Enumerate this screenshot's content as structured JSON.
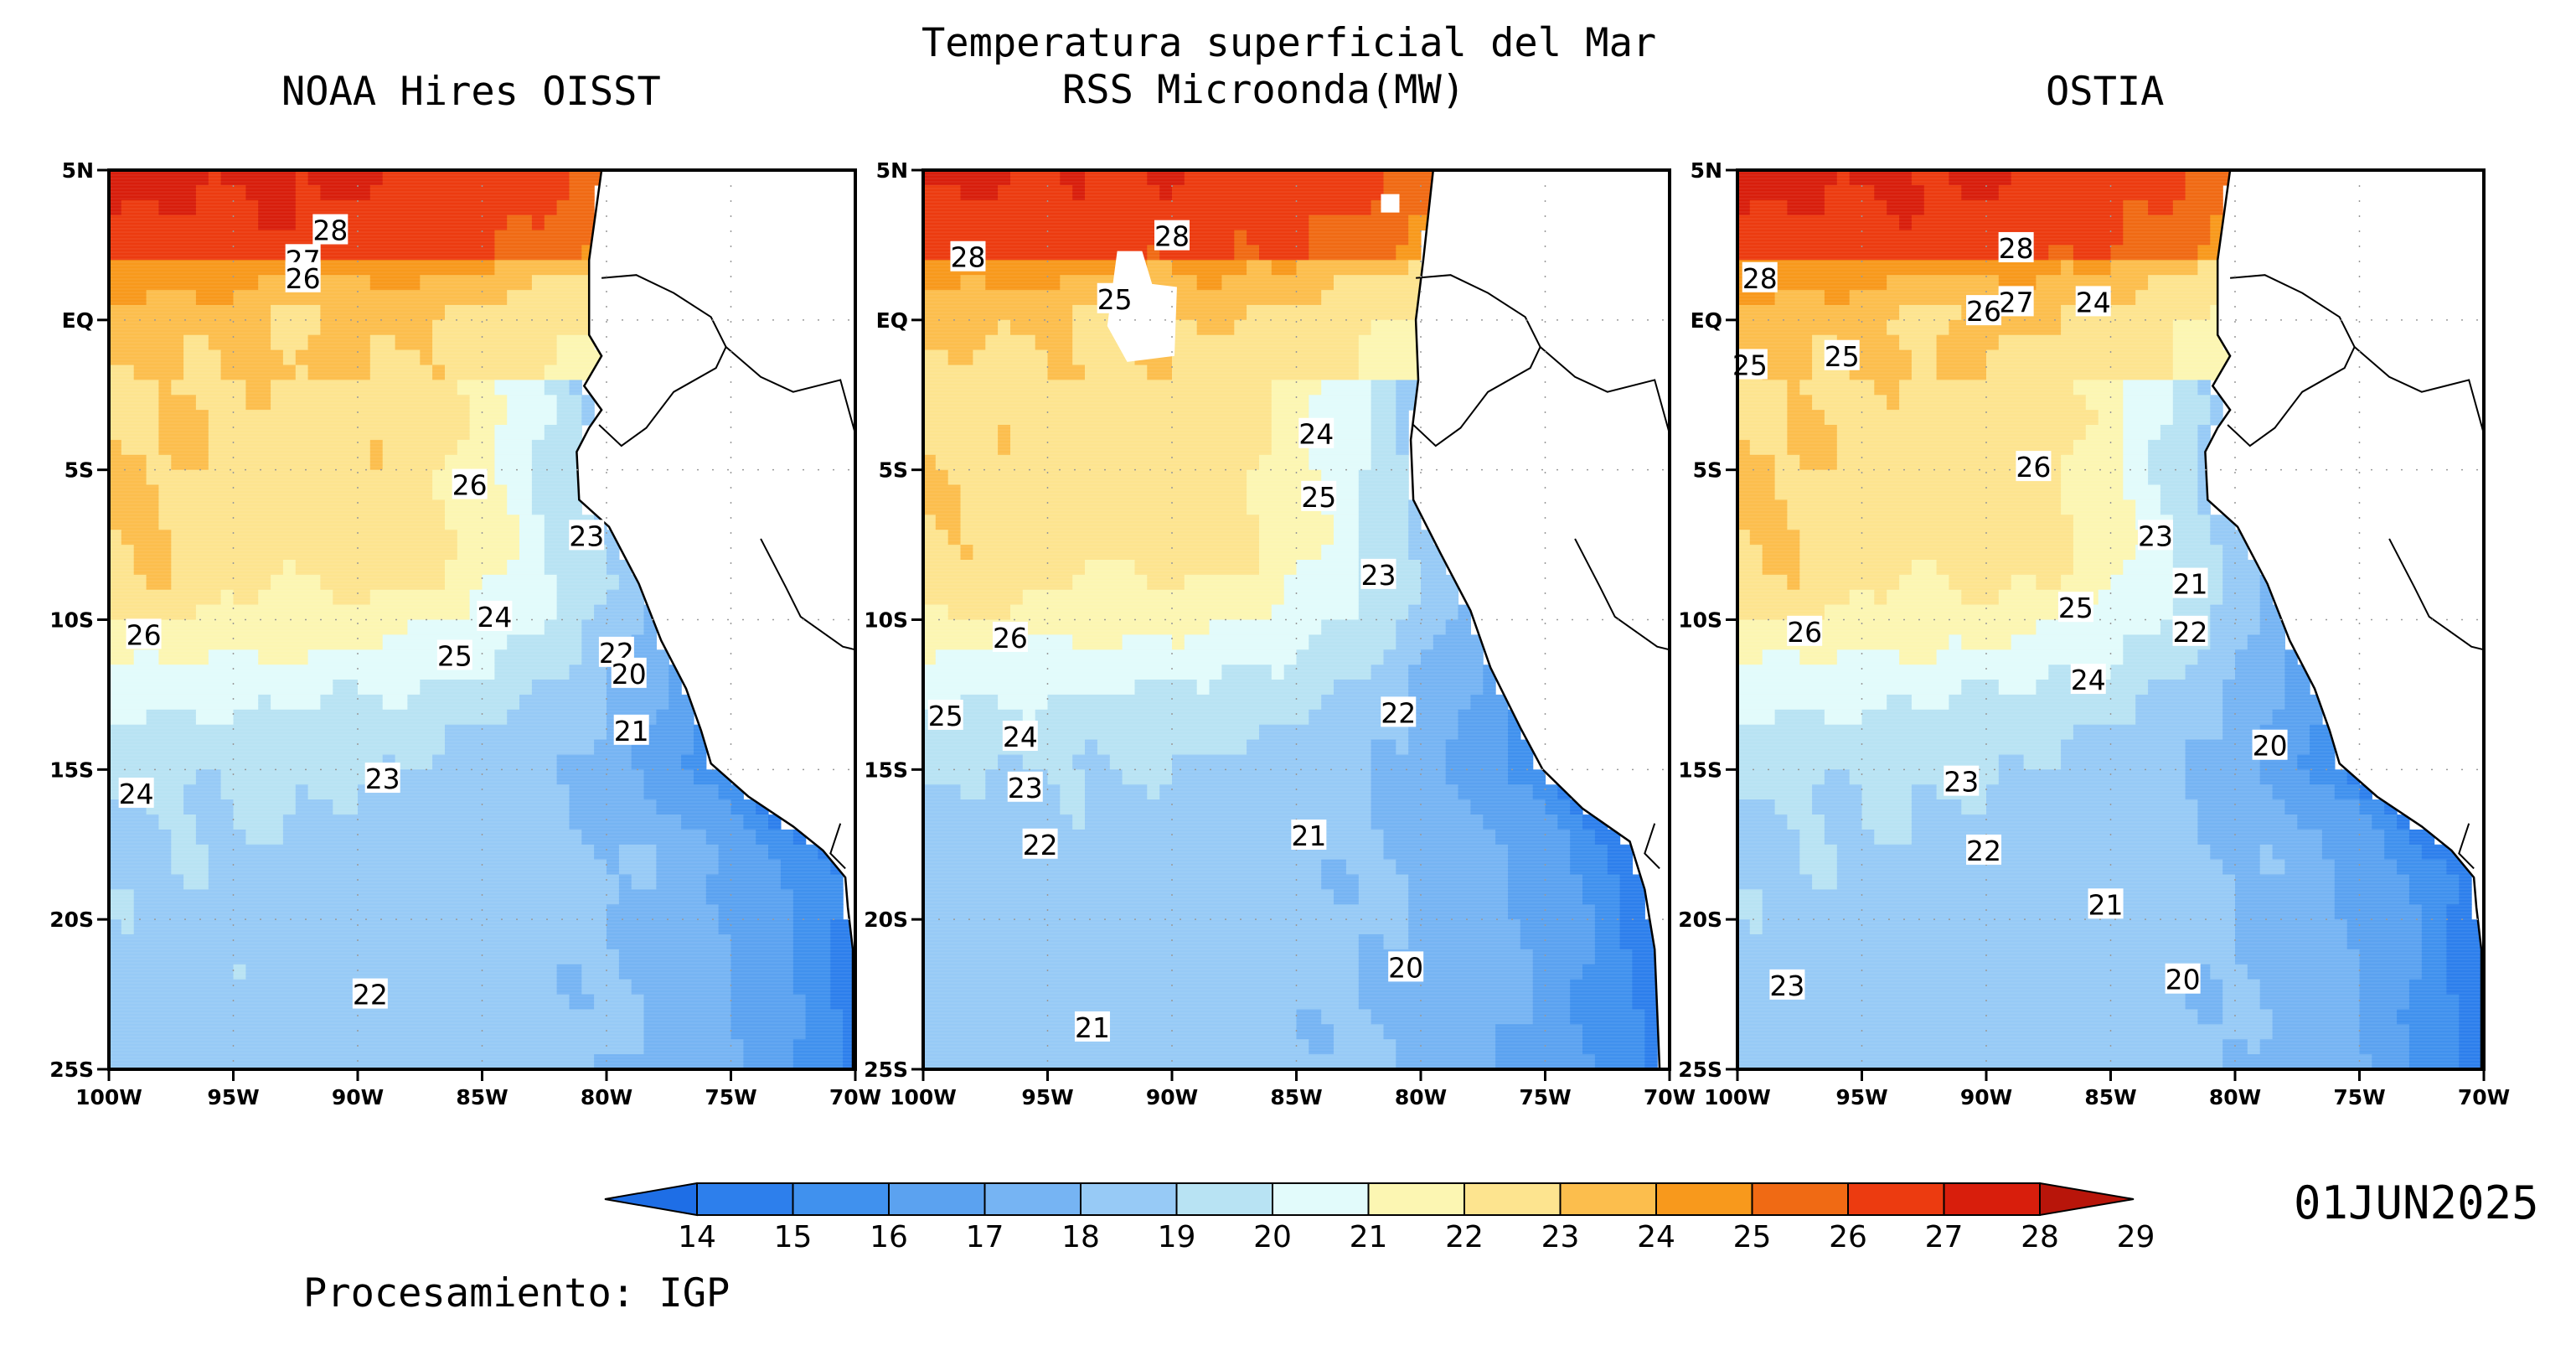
{
  "title": {
    "line1": "Temperatura superficial del Mar",
    "line2": "RSS Microonda(MW)"
  },
  "panels": [
    {
      "id": "oisst",
      "title": "NOAA Hires OISST",
      "contour_labels": [
        {
          "text": "28",
          "lon": -91.1,
          "lat": 3.0
        },
        {
          "text": "27",
          "lon": -92.2,
          "lat": 2.0
        },
        {
          "text": "26",
          "lon": -92.2,
          "lat": 1.4
        },
        {
          "text": "26",
          "lon": -85.5,
          "lat": -5.5
        },
        {
          "text": "23",
          "lon": -80.8,
          "lat": -7.2
        },
        {
          "text": "24",
          "lon": -84.5,
          "lat": -9.9
        },
        {
          "text": "26",
          "lon": -98.6,
          "lat": -10.5
        },
        {
          "text": "25",
          "lon": -86.1,
          "lat": -11.2
        },
        {
          "text": "22",
          "lon": -79.6,
          "lat": -11.1
        },
        {
          "text": "20",
          "lon": -79.1,
          "lat": -11.8
        },
        {
          "text": "21",
          "lon": -79.0,
          "lat": -13.7
        },
        {
          "text": "23",
          "lon": -89.0,
          "lat": -15.3
        },
        {
          "text": "24",
          "lon": -98.9,
          "lat": -15.8
        },
        {
          "text": "22",
          "lon": -89.5,
          "lat": -22.5
        }
      ]
    },
    {
      "id": "rss",
      "title": "",
      "contour_labels": [
        {
          "text": "28",
          "lon": -98.2,
          "lat": 2.1
        },
        {
          "text": "28",
          "lon": -90.0,
          "lat": 2.8
        },
        {
          "text": "25",
          "lon": -92.3,
          "lat": 0.7
        },
        {
          "text": "24",
          "lon": -84.2,
          "lat": -3.8
        },
        {
          "text": "25",
          "lon": -84.1,
          "lat": -5.9
        },
        {
          "text": "23",
          "lon": -81.7,
          "lat": -8.5
        },
        {
          "text": "26",
          "lon": -96.5,
          "lat": -10.6
        },
        {
          "text": "22",
          "lon": -80.9,
          "lat": -13.1
        },
        {
          "text": "25",
          "lon": -99.1,
          "lat": -13.2
        },
        {
          "text": "24",
          "lon": -96.1,
          "lat": -13.9
        },
        {
          "text": "23",
          "lon": -95.9,
          "lat": -15.6
        },
        {
          "text": "22",
          "lon": -95.3,
          "lat": -17.5
        },
        {
          "text": "21",
          "lon": -84.5,
          "lat": -17.2
        },
        {
          "text": "20",
          "lon": -80.6,
          "lat": -21.6
        },
        {
          "text": "21",
          "lon": -93.2,
          "lat": -23.6
        }
      ]
    },
    {
      "id": "ostia",
      "title": "OSTIA",
      "contour_labels": [
        {
          "text": "28",
          "lon": -88.8,
          "lat": 2.4
        },
        {
          "text": "28",
          "lon": -99.1,
          "lat": 1.4
        },
        {
          "text": "27",
          "lon": -88.8,
          "lat": 0.6
        },
        {
          "text": "24",
          "lon": -85.7,
          "lat": 0.6
        },
        {
          "text": "26",
          "lon": -90.1,
          "lat": 0.3
        },
        {
          "text": "25",
          "lon": -95.8,
          "lat": -1.2
        },
        {
          "text": "25",
          "lon": -99.5,
          "lat": -1.5
        },
        {
          "text": "26",
          "lon": -88.1,
          "lat": -4.9
        },
        {
          "text": "23",
          "lon": -83.2,
          "lat": -7.2
        },
        {
          "text": "21",
          "lon": -81.8,
          "lat": -8.8
        },
        {
          "text": "25",
          "lon": -86.4,
          "lat": -9.6
        },
        {
          "text": "26",
          "lon": -97.3,
          "lat": -10.4
        },
        {
          "text": "22",
          "lon": -81.8,
          "lat": -10.4
        },
        {
          "text": "24",
          "lon": -85.9,
          "lat": -12.0
        },
        {
          "text": "20",
          "lon": -78.6,
          "lat": -14.2
        },
        {
          "text": "23",
          "lon": -91.0,
          "lat": -15.4
        },
        {
          "text": "22",
          "lon": -90.1,
          "lat": -17.7
        },
        {
          "text": "21",
          "lon": -85.2,
          "lat": -19.5
        },
        {
          "text": "20",
          "lon": -82.1,
          "lat": -22.0
        },
        {
          "text": "23",
          "lon": -98.0,
          "lat": -22.2
        }
      ]
    }
  ],
  "axes": {
    "lat_ticks": [
      "5N",
      "EQ",
      "5S",
      "10S",
      "15S",
      "20S",
      "25S"
    ],
    "lon_ticks": [
      "100W",
      "95W",
      "90W",
      "85W",
      "80W",
      "75W",
      "70W"
    ],
    "lat_range": [
      -25,
      5
    ],
    "lon_range": [
      -100,
      -70
    ]
  },
  "colorbar": {
    "ticks": [
      "14",
      "15",
      "16",
      "17",
      "18",
      "19",
      "20",
      "21",
      "22",
      "23",
      "24",
      "25",
      "26",
      "27",
      "28",
      "29"
    ],
    "colors": [
      "#1e6ee6",
      "#2d7fec",
      "#4091ee",
      "#5ba2f0",
      "#76b4f3",
      "#97caf6",
      "#b8e3f3",
      "#e2fbfb",
      "#fcf6b2",
      "#fde48f",
      "#fcbe4d",
      "#f8991c",
      "#f06a14",
      "#ec3b10",
      "#d81e0c",
      "#b8150a"
    ],
    "units_implied": "°C"
  },
  "date": "01JUN2025",
  "credit": "Procesamiento: IGP",
  "land_color": "#ffffff"
}
